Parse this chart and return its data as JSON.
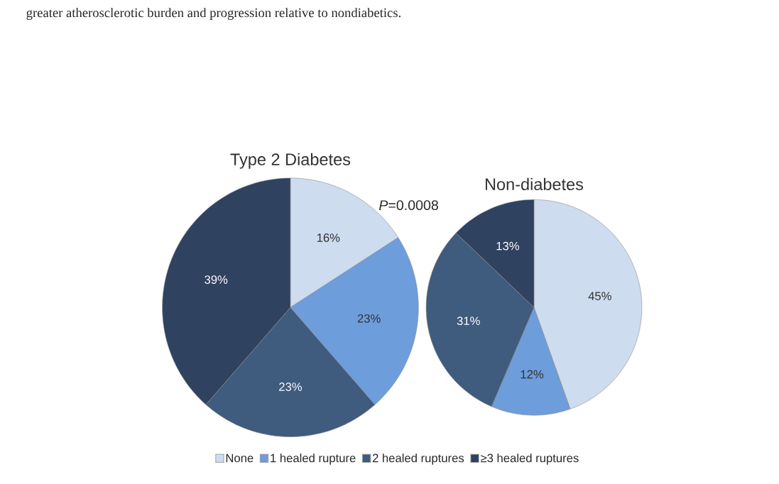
{
  "chart_data": [
    {
      "type": "pie",
      "title": "Type 2 Diabetes",
      "categories": [
        "None",
        "1 healed rupture",
        "2 healed ruptures",
        "≥3 healed ruptures"
      ],
      "values": [
        16,
        23,
        23,
        39
      ],
      "value_labels": [
        "16%",
        "23%",
        "23%",
        "39%"
      ],
      "colors": [
        "#cddcef",
        "#6d9ddb",
        "#3f5b7e",
        "#2f4260"
      ],
      "legend": "bottom",
      "annotations": [
        "greater atherosclerotic burden and progression relative to nondiabetics.",
        "*P*=0.0008"
      ]
    },
    {
      "type": "pie",
      "title": "Non-diabetes",
      "values": [
        45,
        12,
        31,
        13
      ],
      "value_labels": [
        "45%",
        "12%",
        "31%",
        "13%"
      ],
      "colors": [
        "#cddcef",
        "#6d9ddb",
        "#3f5b7e",
        "#2f4260"
      ]
    }
  ]
}
